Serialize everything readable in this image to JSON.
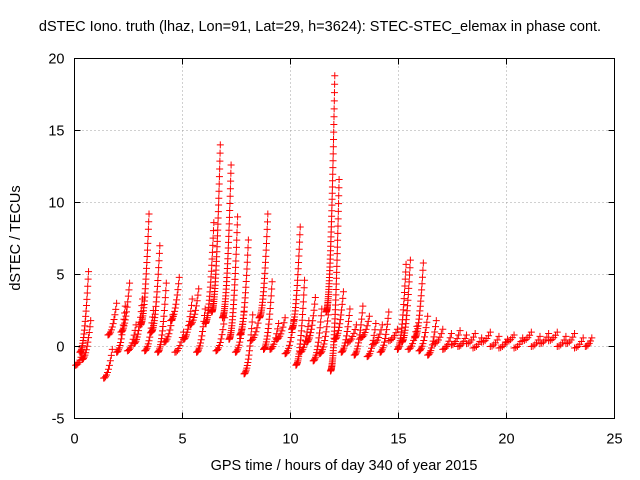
{
  "chart_data": {
    "type": "scatter",
    "title": "dSTEC Iono. truth (lhaz, Lon=91, Lat=29, h=3624): STEC-STEC_elemax in phase cont.",
    "xlabel": "GPS time / hours of day 340 of year 2015",
    "ylabel": "dSTEC  / TECUs",
    "xlim": [
      0,
      25
    ],
    "ylim": [
      -5,
      20
    ],
    "xticks": [
      "0",
      "5",
      "10",
      "15",
      "20",
      "25"
    ],
    "yticks": [
      "-5",
      "0",
      "5",
      "10",
      "15",
      "20"
    ],
    "grid": true,
    "marker": "plus",
    "color": "#ff0000",
    "series": [
      {
        "arcs": [
          [
            0.05,
            -1.3,
            0.35,
            -0.5
          ],
          [
            0.25,
            -0.4,
            0.65,
            5.2
          ],
          [
            0.35,
            -0.9,
            0.75,
            1.8
          ],
          [
            1.35,
            -2.2,
            1.75,
            -0.2
          ],
          [
            1.55,
            0.8,
            1.95,
            3.0
          ],
          [
            1.95,
            -0.4,
            2.35,
            2.8
          ],
          [
            2.15,
            1.0,
            2.55,
            4.4
          ],
          [
            2.45,
            -0.3,
            2.85,
            1.5
          ],
          [
            2.75,
            0.2,
            3.15,
            3.3
          ],
          [
            3.05,
            1.5,
            3.45,
            9.2
          ],
          [
            3.25,
            -0.3,
            3.65,
            2.5
          ],
          [
            3.55,
            1.0,
            3.95,
            7.0
          ],
          [
            3.85,
            -0.4,
            4.25,
            4.4
          ],
          [
            4.15,
            0.3,
            4.55,
            2.2
          ],
          [
            4.45,
            1.8,
            4.85,
            4.8
          ],
          [
            4.65,
            -0.4,
            5.05,
            1.0
          ],
          [
            5.05,
            0.5,
            5.45,
            3.3
          ],
          [
            5.35,
            1.5,
            5.75,
            4.0
          ],
          [
            5.65,
            -0.4,
            6.05,
            2.6
          ],
          [
            6.05,
            1.6,
            6.45,
            8.6
          ],
          [
            6.35,
            2.4,
            6.75,
            14.0
          ],
          [
            6.55,
            -0.3,
            6.95,
            2.0
          ],
          [
            6.85,
            2.0,
            7.25,
            12.6
          ],
          [
            7.15,
            0.5,
            7.55,
            9.0
          ],
          [
            7.45,
            -0.4,
            7.85,
            2.4
          ],
          [
            7.65,
            0.8,
            8.05,
            7.4
          ],
          [
            7.85,
            -1.9,
            8.25,
            2.2
          ],
          [
            8.15,
            0.4,
            8.55,
            2.0
          ],
          [
            8.55,
            2.0,
            8.95,
            9.2
          ],
          [
            8.75,
            -0.2,
            9.15,
            4.5
          ],
          [
            9.05,
            -0.2,
            9.45,
            1.6
          ],
          [
            9.35,
            0.5,
            9.75,
            2.0
          ],
          [
            9.75,
            -0.5,
            10.15,
            1.8
          ],
          [
            10.05,
            1.2,
            10.45,
            8.3
          ],
          [
            10.25,
            -1.3,
            10.65,
            4.6
          ],
          [
            10.45,
            -0.4,
            10.85,
            1.8
          ],
          [
            10.75,
            0.3,
            11.15,
            3.4
          ],
          [
            11.05,
            -1.0,
            11.45,
            2.6
          ],
          [
            11.35,
            -0.5,
            11.75,
            2.2
          ],
          [
            11.65,
            2.4,
            12.05,
            18.8
          ],
          [
            11.85,
            -1.7,
            12.25,
            11.6
          ],
          [
            12.05,
            0.5,
            12.45,
            3.8
          ],
          [
            12.35,
            -0.4,
            12.75,
            2.6
          ],
          [
            12.65,
            0.3,
            13.05,
            1.5
          ],
          [
            12.95,
            -0.6,
            13.35,
            2.8
          ],
          [
            13.25,
            0.6,
            13.65,
            2.1
          ],
          [
            13.55,
            -0.7,
            13.95,
            1.6
          ],
          [
            13.85,
            0.2,
            14.25,
            1.5
          ],
          [
            14.15,
            -0.4,
            14.55,
            2.4
          ],
          [
            14.55,
            0.4,
            14.95,
            1.2
          ],
          [
            14.95,
            -0.2,
            15.35,
            5.7
          ],
          [
            15.15,
            0.3,
            15.55,
            6.0
          ],
          [
            15.45,
            -0.2,
            15.85,
            1.4
          ],
          [
            15.75,
            0.6,
            16.15,
            5.8
          ],
          [
            15.95,
            -0.3,
            16.35,
            2.1
          ],
          [
            16.35,
            -0.6,
            16.75,
            1.8
          ],
          [
            16.65,
            0.2,
            17.05,
            1.2
          ],
          [
            17.05,
            -0.2,
            17.45,
            0.9
          ],
          [
            17.45,
            0.1,
            17.85,
            1.1
          ],
          [
            17.75,
            0.0,
            18.15,
            0.8
          ],
          [
            18.15,
            0.2,
            18.55,
            0.9
          ],
          [
            18.45,
            -0.1,
            18.85,
            0.6
          ],
          [
            18.85,
            0.3,
            19.25,
            1.0
          ],
          [
            19.25,
            0.0,
            19.65,
            0.7
          ],
          [
            19.65,
            -0.1,
            20.05,
            0.5
          ],
          [
            19.95,
            0.3,
            20.35,
            0.8
          ],
          [
            20.35,
            -0.1,
            20.75,
            0.6
          ],
          [
            20.75,
            0.4,
            21.15,
            1.0
          ],
          [
            21.15,
            0.0,
            21.55,
            0.7
          ],
          [
            21.55,
            0.2,
            21.95,
            0.9
          ],
          [
            21.95,
            0.4,
            22.35,
            1.0
          ],
          [
            22.35,
            0.0,
            22.75,
            0.7
          ],
          [
            22.75,
            0.2,
            23.15,
            0.9
          ],
          [
            23.15,
            -0.1,
            23.55,
            0.6
          ],
          [
            23.65,
            0.0,
            23.95,
            0.6
          ]
        ]
      }
    ]
  }
}
